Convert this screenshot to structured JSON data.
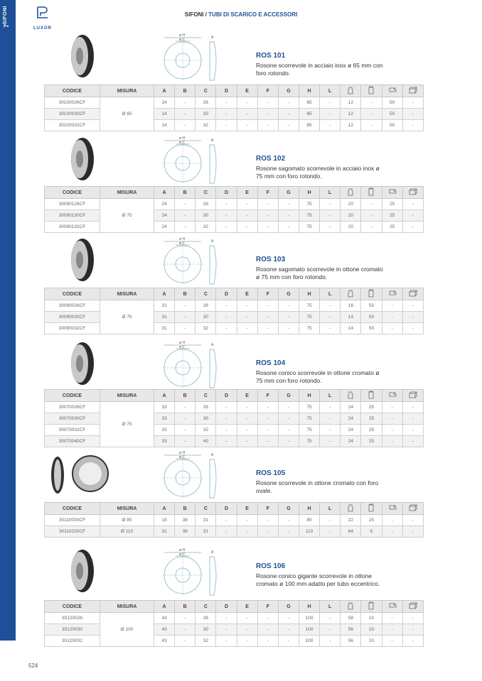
{
  "sidebar": {
    "section": "SIFONI",
    "number": "7"
  },
  "logo": {
    "text": "LUXOR"
  },
  "header": {
    "category": "SIFONI /",
    "subcategory": "TUBI DI SCARICO E ACCESSORI"
  },
  "columns": [
    "CODICE",
    "MISURA",
    "A",
    "B",
    "C",
    "D",
    "E",
    "F",
    "G",
    "H",
    "L"
  ],
  "icon_columns": [
    "weight-icon",
    "box-icon",
    "pack-icon",
    "carton-icon"
  ],
  "drawing_labels": {
    "h": "ø H",
    "c": "ø C",
    "a": "A",
    "b": "B"
  },
  "products": [
    {
      "title": "ROS 101",
      "desc": "Rosone scorrevole in acciaio inox ø 65 mm con foro rotondo.",
      "misura": "Ø 65",
      "rows": [
        [
          "30100026CF",
          "14",
          "-",
          "26",
          "-",
          "-",
          "-",
          "-",
          "65",
          "-",
          "12",
          "-",
          "50",
          "-"
        ],
        [
          "30100030CF",
          "14",
          "-",
          "30",
          "-",
          "-",
          "-",
          "-",
          "65",
          "-",
          "12",
          "-",
          "50",
          "-"
        ],
        [
          "30100032CF",
          "14",
          "-",
          "32",
          "-",
          "-",
          "-",
          "-",
          "65",
          "-",
          "12",
          "-",
          "50",
          "-"
        ]
      ]
    },
    {
      "title": "ROS 102",
      "desc": "Rosone sagomato scorrevole in acciaio inox ø 75 mm con foro rotondo.",
      "misura": "Ø 75",
      "rows": [
        [
          "30090126CF",
          "24",
          "-",
          "26",
          "-",
          "-",
          "-",
          "-",
          "75",
          "-",
          "20",
          "-",
          "25",
          "-"
        ],
        [
          "30090130CF",
          "24",
          "-",
          "30",
          "-",
          "-",
          "-",
          "-",
          "75",
          "-",
          "20",
          "-",
          "25",
          "-"
        ],
        [
          "30090132CF",
          "24",
          "-",
          "32",
          "-",
          "-",
          "-",
          "-",
          "75",
          "-",
          "20",
          "-",
          "25",
          "-"
        ]
      ]
    },
    {
      "title": "ROS 103",
      "desc": "Rosone sagomato scorrevole in ottone cromato ø 75 mm con foro rotondo.",
      "misura": "Ø 75",
      "rows": [
        [
          "30090026CF",
          "31",
          "-",
          "26",
          "-",
          "-",
          "-",
          "-",
          "75",
          "-",
          "16",
          "50",
          "-",
          "-"
        ],
        [
          "30090030CF",
          "31",
          "-",
          "30",
          "-",
          "-",
          "-",
          "-",
          "75",
          "-",
          "14",
          "50",
          "-",
          "-"
        ],
        [
          "30090032CF",
          "31",
          "-",
          "32",
          "-",
          "-",
          "-",
          "-",
          "75",
          "-",
          "14",
          "50",
          "-",
          "-"
        ]
      ]
    },
    {
      "title": "ROS 104",
      "desc": "Rosone conico scorrevole in ottone cromato ø 75 mm con foro rotondo.",
      "misura": "Ø 75",
      "rows": [
        [
          "30070026CF",
          "33",
          "-",
          "26",
          "-",
          "-",
          "-",
          "-",
          "75",
          "-",
          "24",
          "25",
          "-",
          "-"
        ],
        [
          "30070030CF",
          "33",
          "-",
          "30",
          "-",
          "-",
          "-",
          "-",
          "75",
          "-",
          "24",
          "25",
          "-",
          "-"
        ],
        [
          "30070032CF",
          "33",
          "-",
          "32",
          "-",
          "-",
          "-",
          "-",
          "75",
          "-",
          "24",
          "25",
          "-",
          "-"
        ],
        [
          "30070040CF",
          "33",
          "-",
          "40",
          "-",
          "-",
          "-",
          "-",
          "75",
          "-",
          "24",
          "25",
          "-",
          "-"
        ]
      ]
    },
    {
      "title": "ROS 105",
      "desc": "Rosone scorrevole in ottone cromato con foro ovale.",
      "misuras": [
        "Ø 80",
        "Ø 110"
      ],
      "rows": [
        [
          "30110030CF",
          "18",
          "38",
          "31",
          "-",
          "-",
          "-",
          "-",
          "80",
          "-",
          "22",
          "25",
          "-",
          "-"
        ],
        [
          "30110230CF",
          "31",
          "38",
          "31",
          "-",
          "-",
          "-",
          "-",
          "110",
          "-",
          "64",
          "5",
          "-",
          "-"
        ]
      ]
    },
    {
      "title": "ROS 106",
      "desc": "Rosone conico gigante scorrevole in ottone cromato ø 100 mm adatto per tubo eccentrico.",
      "misura": "Ø 100",
      "rows": [
        [
          "35120026",
          "43",
          "-",
          "26",
          "-",
          "-",
          "-",
          "-",
          "100",
          "-",
          "58",
          "10",
          "-",
          "-"
        ],
        [
          "35120030",
          "43",
          "-",
          "30",
          "-",
          "-",
          "-",
          "-",
          "100",
          "-",
          "56",
          "10",
          "-",
          "-"
        ],
        [
          "35120032",
          "43",
          "-",
          "32",
          "-",
          "-",
          "-",
          "-",
          "100",
          "-",
          "56",
          "10",
          "-",
          "-"
        ]
      ]
    }
  ],
  "page_number": "524",
  "colors": {
    "brand": "#1f4f96",
    "header_bg": "#e8e8e8"
  }
}
